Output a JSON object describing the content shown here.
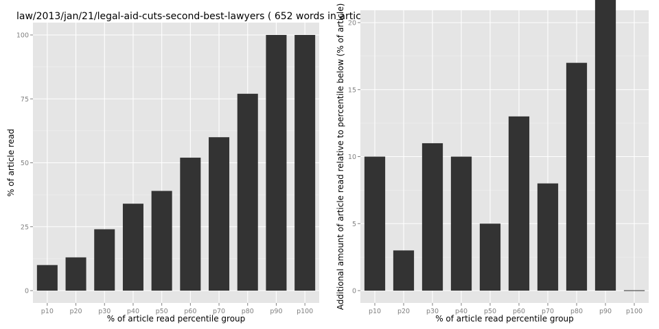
{
  "chart_data": [
    {
      "type": "bar",
      "title": "law/2013/jan/21/legal-aid-cuts-second-best-lawyers ( 652 words in artic",
      "xlabel": "% of article read percentile group",
      "ylabel": "% of article read",
      "categories": [
        "p10",
        "p20",
        "p30",
        "p40",
        "p50",
        "p60",
        "p70",
        "p80",
        "p90",
        "p100"
      ],
      "values": [
        10,
        13,
        24,
        34,
        39,
        52,
        60,
        77,
        100,
        100
      ],
      "ylim": [
        0,
        100
      ],
      "yticks": [
        0,
        25,
        50,
        75,
        100
      ],
      "grid": true
    },
    {
      "type": "bar",
      "title": "",
      "xlabel": "% of article read percentile group",
      "ylabel": "Additional amount of article read relative to percentile below (% of article)",
      "categories": [
        "p10",
        "p20",
        "p30",
        "p40",
        "p50",
        "p60",
        "p70",
        "p80",
        "p90",
        "p100"
      ],
      "values": [
        10,
        3,
        11,
        10,
        5,
        13,
        8,
        17,
        23,
        0
      ],
      "ylim": [
        0,
        23
      ],
      "yticks": [
        0,
        5,
        10,
        15,
        20
      ],
      "grid": true
    }
  ]
}
